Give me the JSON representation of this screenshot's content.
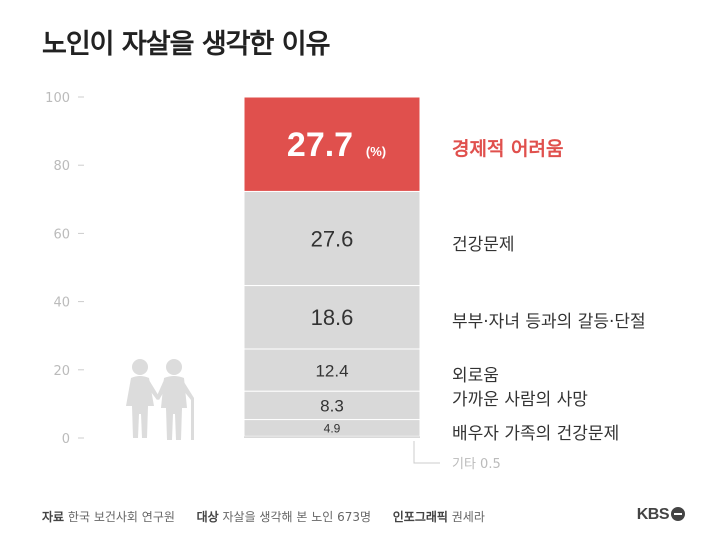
{
  "title": "노인이 자살을 생각한 이유",
  "chart_data": {
    "type": "bar",
    "stacked": true,
    "unit": "(%)",
    "ylim": [
      0,
      100
    ],
    "yticks": [
      0,
      20,
      40,
      60,
      80,
      100
    ],
    "grid": false,
    "segments": [
      {
        "label": "경제적 어려움",
        "value": 27.7,
        "value_text": "27.7",
        "color": "#e0504d",
        "highlight": true
      },
      {
        "label": "건강문제",
        "value": 27.6,
        "value_text": "27.6",
        "color": "#d9d9d9"
      },
      {
        "label": "부부·자녀 등과의 갈등·단절",
        "value": 18.6,
        "value_text": "18.6",
        "color": "#d9d9d9"
      },
      {
        "label": "외로움",
        "value": 12.4,
        "value_text": "12.4",
        "color": "#d9d9d9"
      },
      {
        "label": "가까운 사람의 사망",
        "value": 8.3,
        "value_text": "8.3",
        "color": "#d9d9d9"
      },
      {
        "label": "배우자 가족의 건강문제",
        "value": 4.9,
        "value_text": "4.9",
        "color": "#d9d9d9"
      },
      {
        "label": "기타",
        "value": 0.5,
        "value_text": "0.5",
        "color": "#d9d9d9"
      }
    ]
  },
  "footer": {
    "source_label": "자료",
    "source": "한국 보건사회 연구원",
    "subject_label": "대상",
    "subject": "자살을 생각해 본 노인 673명",
    "graphic_label": "인포그래픽",
    "graphic": "권세라",
    "logo": "KBS"
  },
  "colors": {
    "accent": "#e0504d",
    "segment": "#d9d9d9",
    "axis": "#bbbbbb",
    "text": "#333333"
  },
  "icon": "elderly-couple-icon"
}
